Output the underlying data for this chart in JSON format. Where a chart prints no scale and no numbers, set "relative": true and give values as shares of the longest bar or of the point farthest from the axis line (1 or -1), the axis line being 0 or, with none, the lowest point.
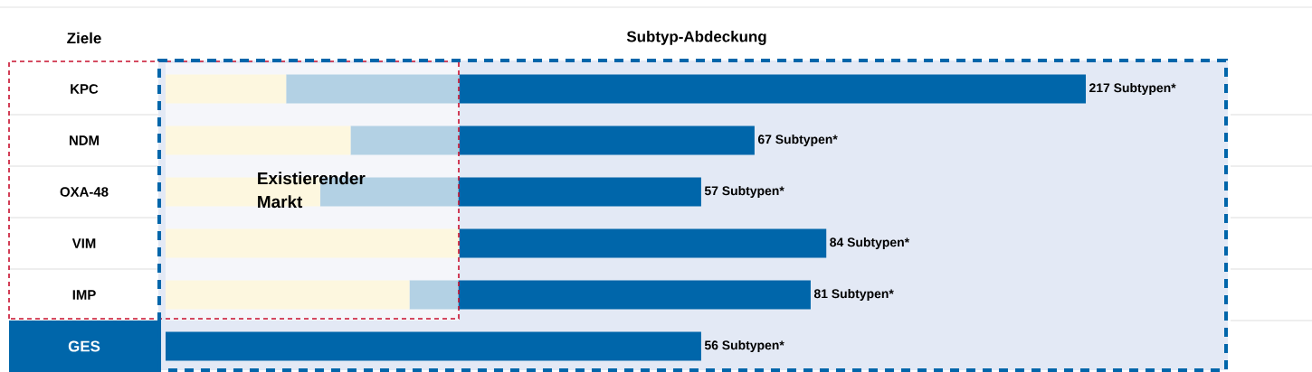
{
  "chart_data": {
    "type": "bar",
    "orientation": "horizontal",
    "stacked": true,
    "relative": true,
    "title": "Subtyp-Abdeckung",
    "ylabel": "Ziele",
    "categories": [
      "KPC",
      "NDM",
      "OXA-48",
      "VIM",
      "IMP",
      "GES"
    ],
    "series": [
      {
        "color": "#fdf7df",
        "values": [
          0.131,
          0.201,
          0.168,
          0.319,
          0.265,
          0
        ]
      },
      {
        "color": "#b3d1e4",
        "values": [
          0.188,
          0.118,
          0.15,
          0,
          0.053,
          0
        ]
      },
      {
        "color": "#0066aa",
        "values": [
          0.681,
          0.321,
          0.264,
          0.399,
          0.383,
          0.582
        ]
      }
    ],
    "annotations": [
      "217 Subtypen*",
      "67 Subtypen*",
      "57 Subtypen*",
      "84 Subtypen*",
      "81 Subtypen*",
      "56 Subtypen*"
    ],
    "bands": [
      {
        "axis": "x",
        "from": 0,
        "to": 0.319,
        "label": "Existierender Markt",
        "color": "#f5f6fa"
      }
    ]
  }
}
